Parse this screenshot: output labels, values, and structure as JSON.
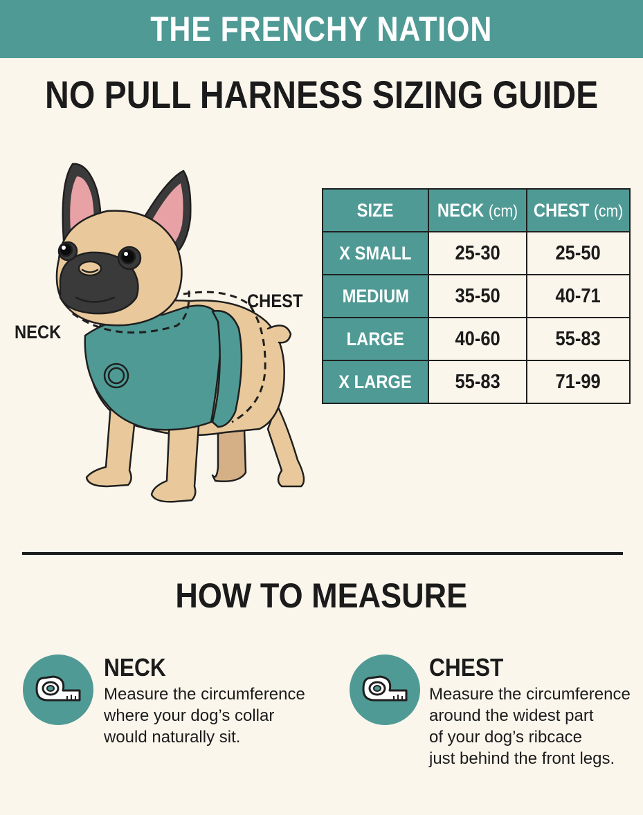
{
  "banner": {
    "brand": "THE FRENCHY NATION"
  },
  "title": "NO PULL HARNESS SIZING GUIDE",
  "illustration": {
    "chest_label": "CHEST",
    "neck_label": "NECK",
    "colors": {
      "fur": "#e9c99b",
      "harness": "#4f9a95",
      "ears": "#e8a2a6",
      "mask": "#3a3a3a"
    }
  },
  "size_table": {
    "headers": [
      {
        "main": "SIZE",
        "unit": ""
      },
      {
        "main": "NECK",
        "unit": "(cm)"
      },
      {
        "main": "CHEST",
        "unit": "(cm)"
      }
    ],
    "rows": [
      {
        "size": "X SMALL",
        "neck": "25-30",
        "chest": "25-50"
      },
      {
        "size": "MEDIUM",
        "neck": "35-50",
        "chest": "40-71"
      },
      {
        "size": "LARGE",
        "neck": "40-60",
        "chest": "55-83"
      },
      {
        "size": "X LARGE",
        "neck": "55-83",
        "chest": "71-99"
      }
    ]
  },
  "how_to": {
    "title": "HOW TO MEASURE",
    "items": [
      {
        "icon": "measuring-tape-icon",
        "heading": "NECK",
        "lines": [
          "Measure the circumference",
          "where your dog’s collar",
          "would naturally sit."
        ]
      },
      {
        "icon": "measuring-tape-icon",
        "heading": "CHEST",
        "lines": [
          "Measure the circumference",
          "around the widest part",
          "of your dog’s ribcace",
          "just behind the front legs."
        ]
      }
    ]
  },
  "colors": {
    "accent": "#4f9a95",
    "background": "#fbf6ec",
    "text": "#1b1b1b"
  }
}
